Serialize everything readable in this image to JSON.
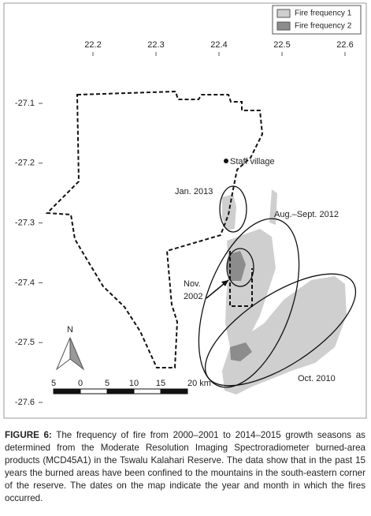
{
  "map": {
    "legend": [
      "Fire frequency 1",
      "Fire frequency 2"
    ],
    "xticks": [
      22.2,
      22.3,
      22.4,
      22.5,
      22.6
    ],
    "yticks": [
      -27.1,
      -27.2,
      -27.3,
      -27.4,
      -27.5,
      -27.6
    ],
    "annotations": {
      "staff_village": "Staff village",
      "jan_2013": "Jan. 2013",
      "aug_sept_2012": "Aug.–Sept. 2012",
      "nov_2002": [
        "Nov.",
        "2002"
      ],
      "oct_2010": "Oct. 2010"
    },
    "north": "N",
    "scale_bar": [
      "5",
      "0",
      "5",
      "10",
      "15",
      "20 km"
    ]
  },
  "caption": {
    "label": "FIGURE 6:",
    "text": "The frequency of fire from 2000–2001 to 2014–2015 growth seasons as determined from the Moderate Resolution Imaging Spectroradiometer burned-area products (MCD45A1) in the Tswalu Kalahari Reserve. The data show that in the past 15 years the burned areas have been confined to the mountains in the south-eastern corner of the reserve. The dates on the map indicate the year and month in which the fires occurred."
  }
}
